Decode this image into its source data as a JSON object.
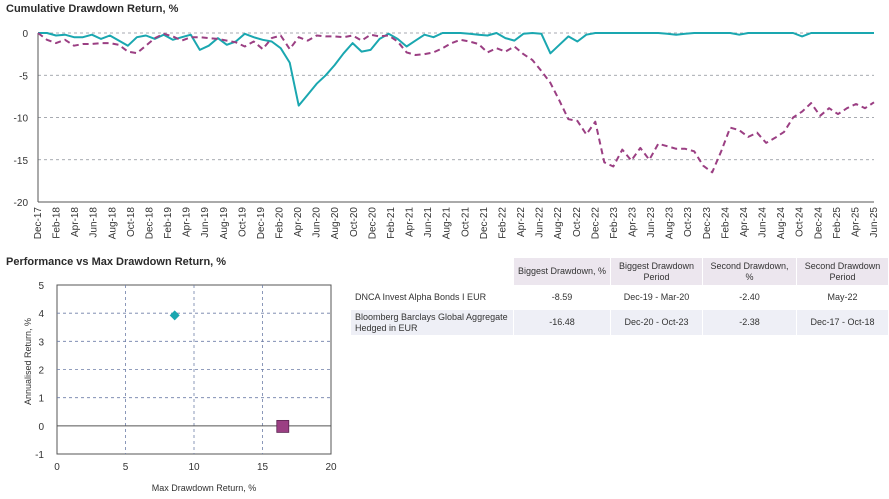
{
  "charts": {
    "drawdown_title": "Cumulative Drawdown Return, %",
    "scatter_title": "Performance vs Max Drawdown Return, %"
  },
  "table": {
    "headers": [
      "",
      "Biggest Drawdown, %",
      "Biggest Drawdown Period",
      "Second Drawdown, %",
      "Second Drawdown Period"
    ],
    "rows": [
      [
        "DNCA Invest Alpha Bonds I EUR",
        "-8.59",
        "Dec-19 - Mar-20",
        "-2.40",
        "May-22"
      ],
      [
        "Bloomberg Barclays Global Aggregate Hedged in EUR",
        "-16.48",
        "Dec-20 - Oct-23",
        "-2.38",
        "Dec-17 - Oct-18"
      ]
    ]
  },
  "chart_data": [
    {
      "type": "line",
      "title": "Cumulative Drawdown Return, %",
      "xlabel": "",
      "ylabel": "",
      "ylim": [
        -20,
        0
      ],
      "yticks": [
        0,
        -5,
        -10,
        -15,
        -20
      ],
      "x_tick_labels": [
        "Dec-17",
        "Feb-18",
        "Apr-18",
        "Jun-18",
        "Aug-18",
        "Oct-18",
        "Dec-18",
        "Feb-19",
        "Apr-19",
        "Jun-19",
        "Aug-19",
        "Oct-19",
        "Dec-19",
        "Feb-20",
        "Apr-20",
        "Jun-20",
        "Aug-20",
        "Oct-20",
        "Dec-20",
        "Feb-21",
        "Apr-21",
        "Jun-21",
        "Aug-21",
        "Oct-21",
        "Dec-21",
        "Feb-22",
        "Apr-22",
        "Jun-22",
        "Aug-22",
        "Oct-22",
        "Dec-22",
        "Feb-23",
        "Apr-23",
        "Jun-23",
        "Aug-23",
        "Oct-23",
        "Dec-23",
        "Feb-24",
        "Apr-24",
        "Jun-24",
        "Aug-24",
        "Oct-24",
        "Dec-24",
        "Feb-25",
        "Apr-25",
        "Jun-25"
      ],
      "grid": true,
      "series": [
        {
          "name": "DNCA Invest Alpha Bonds I EUR",
          "color": "#1aa7b0",
          "style": "solid",
          "values": [
            0,
            0,
            -0.3,
            -0.2,
            -0.5,
            -0.5,
            -0.2,
            -0.7,
            -0.3,
            -0.9,
            -1.5,
            -0.5,
            -0.3,
            -0.7,
            -0.2,
            -0.8,
            -0.5,
            -0.2,
            -2.0,
            -1.5,
            -0.6,
            -1.4,
            -1.0,
            -0.1,
            -0.5,
            -0.8,
            -1.0,
            -1.8,
            -3.5,
            -8.59,
            -7.3,
            -6.0,
            -5.0,
            -3.8,
            -2.4,
            -1.2,
            -2.2,
            -2.0,
            -0.7,
            -0.1,
            -0.7,
            -1.6,
            -0.9,
            -0.2,
            -0.5,
            0,
            0,
            0,
            -0.1,
            -0.2,
            -0.3,
            0,
            -0.6,
            -0.9,
            -0.1,
            0,
            -0.1,
            -2.4,
            -1.4,
            -0.4,
            -1.0,
            -0.2,
            0,
            0,
            0,
            0,
            0,
            0,
            0,
            0,
            -0.1,
            -0.2,
            -0.1,
            0,
            0,
            0,
            0,
            0,
            -0.2,
            0,
            0,
            0,
            0,
            0,
            0,
            -0.4,
            0,
            0,
            0,
            0,
            0,
            0,
            0,
            0
          ]
        },
        {
          "name": "Bloomberg Barclays Global Aggregate Hedged in EUR",
          "color": "#9b3f83",
          "style": "dashed",
          "values": [
            0,
            -0.8,
            -1.2,
            -0.8,
            -1.5,
            -1.3,
            -1.3,
            -1.2,
            -1.2,
            -1.4,
            -2.2,
            -2.38,
            -1.5,
            -0.6,
            -0.1,
            -0.4,
            -0.9,
            -0.5,
            -0.5,
            -0.6,
            -0.7,
            -0.9,
            -1.1,
            -1.6,
            -1.0,
            -1.9,
            -0.6,
            -0.3,
            -1.9,
            -0.5,
            -0.9,
            -0.3,
            -0.4,
            -0.4,
            -0.5,
            -0.3,
            -0.9,
            -0.2,
            -0.4,
            -0.3,
            -1.0,
            -2.3,
            -2.6,
            -2.5,
            -2.3,
            -1.8,
            -1.2,
            -0.8,
            -1.0,
            -1.3,
            -2.3,
            -1.8,
            -2.2,
            -1.6,
            -2.5,
            -3.2,
            -4.5,
            -5.9,
            -8.0,
            -10.2,
            -10.4,
            -12.0,
            -10.5,
            -15.3,
            -15.8,
            -13.8,
            -15.1,
            -13.6,
            -15.0,
            -13.1,
            -13.4,
            -13.7,
            -13.7,
            -14.0,
            -15.7,
            -16.48,
            -14.0,
            -11.2,
            -11.5,
            -12.3,
            -11.8,
            -13.0,
            -12.4,
            -11.7,
            -10.0,
            -9.3,
            -8.3,
            -9.8,
            -8.9,
            -9.6,
            -8.9,
            -8.4,
            -8.9,
            -8.2
          ]
        }
      ]
    },
    {
      "type": "scatter",
      "title": "Performance vs Max Drawdown Return, %",
      "xlabel": "Max Drawdown Return, %",
      "ylabel": "Annualised Return, %",
      "xlim": [
        0,
        20
      ],
      "ylim": [
        -1,
        5
      ],
      "xticks": [
        0,
        5,
        10,
        15,
        20
      ],
      "yticks": [
        -1,
        0,
        1,
        2,
        3,
        4,
        5
      ],
      "grid": true,
      "series": [
        {
          "name": "DNCA Invest Alpha Bonds I EUR",
          "marker": "diamond",
          "color": "#1aa7b0",
          "x": 8.59,
          "y": 3.92
        },
        {
          "name": "Bloomberg Barclays Global Aggregate Hedged in EUR",
          "marker": "square",
          "color": "#9b3f83",
          "x": 16.48,
          "y": -0.02
        }
      ]
    }
  ]
}
